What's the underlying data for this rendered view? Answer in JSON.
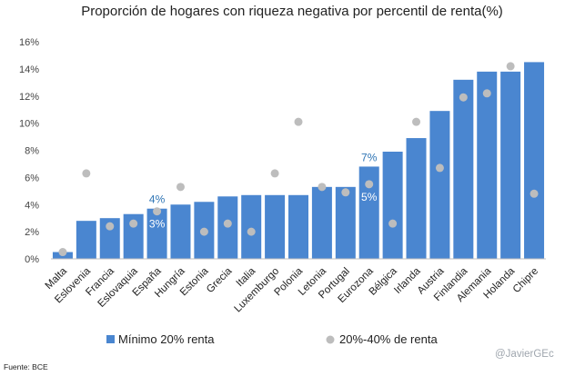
{
  "chart_data": {
    "type": "bar",
    "title": "Proporción de hogares con riqueza negativa por percentil de renta(%)",
    "categories": [
      "Malta",
      "Eslovenia",
      "Francia",
      "Eslovaquia",
      "España",
      "Hungría",
      "Estonia",
      "Grecia",
      "Italia",
      "Luxemburgo",
      "Polonia",
      "Letonia",
      "Portugal",
      "Eurozona",
      "Bélgica",
      "Irlanda",
      "Austria",
      "Finlandia",
      "Alemania",
      "Holanda",
      "Chipre"
    ],
    "series": [
      {
        "name": "Mínimo 20% renta",
        "kind": "bar",
        "color": "#4a86d0",
        "values": [
          0.5,
          2.8,
          3.0,
          3.3,
          3.7,
          4.0,
          4.2,
          4.6,
          4.7,
          4.7,
          4.7,
          5.3,
          5.3,
          6.8,
          7.9,
          8.9,
          10.9,
          13.2,
          13.8,
          13.8,
          14.5
        ]
      },
      {
        "name": "20%-40% de renta",
        "kind": "point",
        "color": "#bdbdbd",
        "values": [
          0.5,
          6.3,
          2.4,
          2.6,
          3.5,
          5.3,
          2.0,
          2.6,
          2.0,
          6.3,
          10.1,
          5.3,
          4.9,
          5.5,
          2.6,
          10.1,
          6.7,
          11.9,
          12.2,
          14.2,
          4.8
        ]
      }
    ],
    "ylim": [
      0,
      16
    ],
    "yticks": [
      "0%",
      "2%",
      "4%",
      "6%",
      "8%",
      "10%",
      "12%",
      "14%",
      "16%"
    ],
    "annotations": [
      {
        "category_index": 4,
        "above": "4%",
        "inside": "3%"
      },
      {
        "category_index": 13,
        "above": "7%",
        "inside": "5%"
      }
    ]
  },
  "legend": [
    {
      "label": "Mínimo 20% renta",
      "marker": "square",
      "color": "#4a86d0"
    },
    {
      "label": "20%-40% de renta",
      "marker": "circle",
      "color": "#bdbdbd"
    }
  ],
  "source_note": "Fuente: BCE",
  "credit": "@JavierGEc"
}
